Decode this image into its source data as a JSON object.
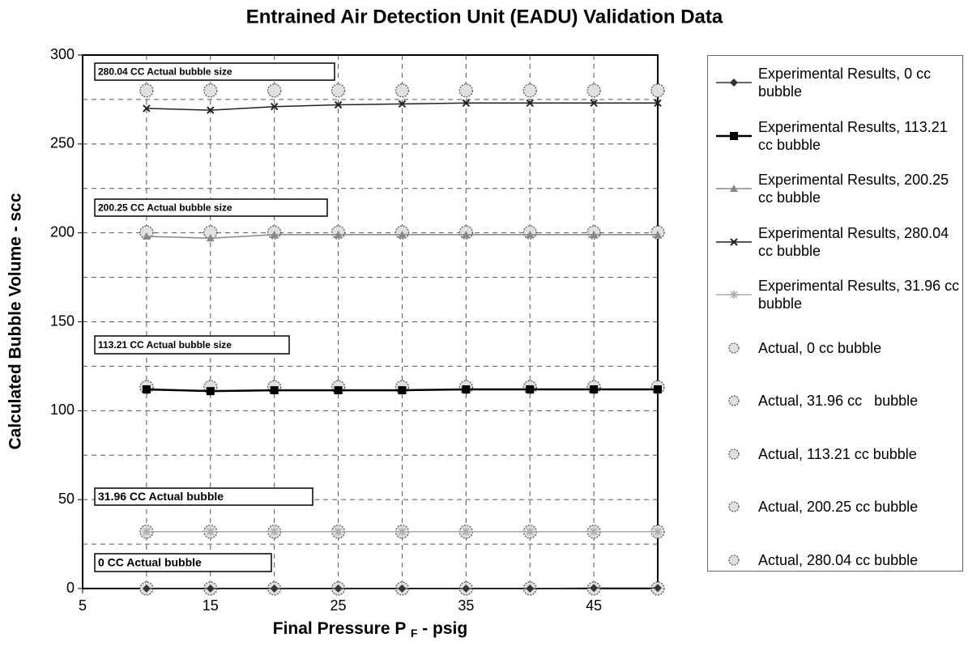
{
  "chart_data": {
    "type": "line",
    "title": "Entrained Air Detection Unit (EADU) Validation Data",
    "ylabel": "Calculated Bubble Volume - scc",
    "xlabel": {
      "text": "Final Pressure P",
      "subscript": "F",
      "suffix": " - psig"
    },
    "x": [
      10,
      15,
      20,
      25,
      30,
      35,
      40,
      45,
      50
    ],
    "xlim": [
      5,
      50
    ],
    "xticks": [
      5,
      15,
      25,
      35,
      45
    ],
    "xminor_ticks": [
      10,
      20,
      30,
      40,
      50
    ],
    "ylim": [
      0,
      300
    ],
    "yticks": [
      0,
      50,
      100,
      150,
      200,
      250,
      300
    ],
    "yminor_ticks": [
      25,
      75,
      125,
      175,
      225,
      275
    ],
    "grid": true,
    "series": [
      {
        "name": "Experimental Results, 0 cc bubble",
        "color": "#333333",
        "marker": "diamond",
        "line": true,
        "values": [
          0,
          0,
          0,
          0,
          0,
          0,
          0,
          0.3,
          0.3
        ]
      },
      {
        "name": "Experimental Results, 113.21 cc bubble",
        "color": "#000000",
        "marker": "square",
        "line": true,
        "values": [
          112,
          111,
          111.5,
          111.5,
          111.5,
          112,
          112,
          112,
          112
        ]
      },
      {
        "name": "Experimental Results, 200.25 cc bubble",
        "color": "#888888",
        "marker": "triangle",
        "line": true,
        "values": [
          198,
          197,
          199,
          199,
          199,
          199,
          199,
          199,
          199
        ]
      },
      {
        "name": "Experimental Results, 280.04 cc bubble",
        "color": "#222222",
        "marker": "x",
        "line": true,
        "values": [
          270,
          269,
          271,
          272,
          272.5,
          273,
          273,
          273,
          273
        ]
      },
      {
        "name": "Experimental Results, 31.96 cc bubble",
        "color": "#aaaaaa",
        "marker": "star",
        "line": true,
        "values": [
          32,
          32,
          32,
          32,
          32,
          32,
          32,
          32,
          32
        ]
      },
      {
        "name": "Actual, 0 cc bubble",
        "color": "#999999",
        "marker": "circle",
        "line": false,
        "values": [
          0,
          0,
          0,
          0,
          0,
          0,
          0,
          0,
          0
        ]
      },
      {
        "name": "Actual, 31.96 cc   bubble",
        "color": "#999999",
        "marker": "circle",
        "line": false,
        "values": [
          31.96,
          31.96,
          31.96,
          31.96,
          31.96,
          31.96,
          31.96,
          31.96,
          31.96
        ]
      },
      {
        "name": "Actual, 113.21 cc bubble",
        "color": "#999999",
        "marker": "circle",
        "line": false,
        "values": [
          113.21,
          113.21,
          113.21,
          113.21,
          113.21,
          113.21,
          113.21,
          113.21,
          113.21
        ]
      },
      {
        "name": "Actual, 200.25 cc bubble",
        "color": "#999999",
        "marker": "circle",
        "line": false,
        "values": [
          200.25,
          200.25,
          200.25,
          200.25,
          200.25,
          200.25,
          200.25,
          200.25,
          200.25
        ]
      },
      {
        "name": "Actual, 280.04 cc bubble",
        "color": "#999999",
        "marker": "circle",
        "line": false,
        "values": [
          280.04,
          280.04,
          280.04,
          280.04,
          280.04,
          280.04,
          280.04,
          280.04,
          280.04
        ]
      }
    ],
    "annotations": [
      "280.04 CC Actual bubble size",
      "200.25 CC Actual bubble size",
      "113.21 CC Actual bubble size",
      "31.96 CC Actual bubble",
      "0 CC Actual bubble"
    ]
  }
}
